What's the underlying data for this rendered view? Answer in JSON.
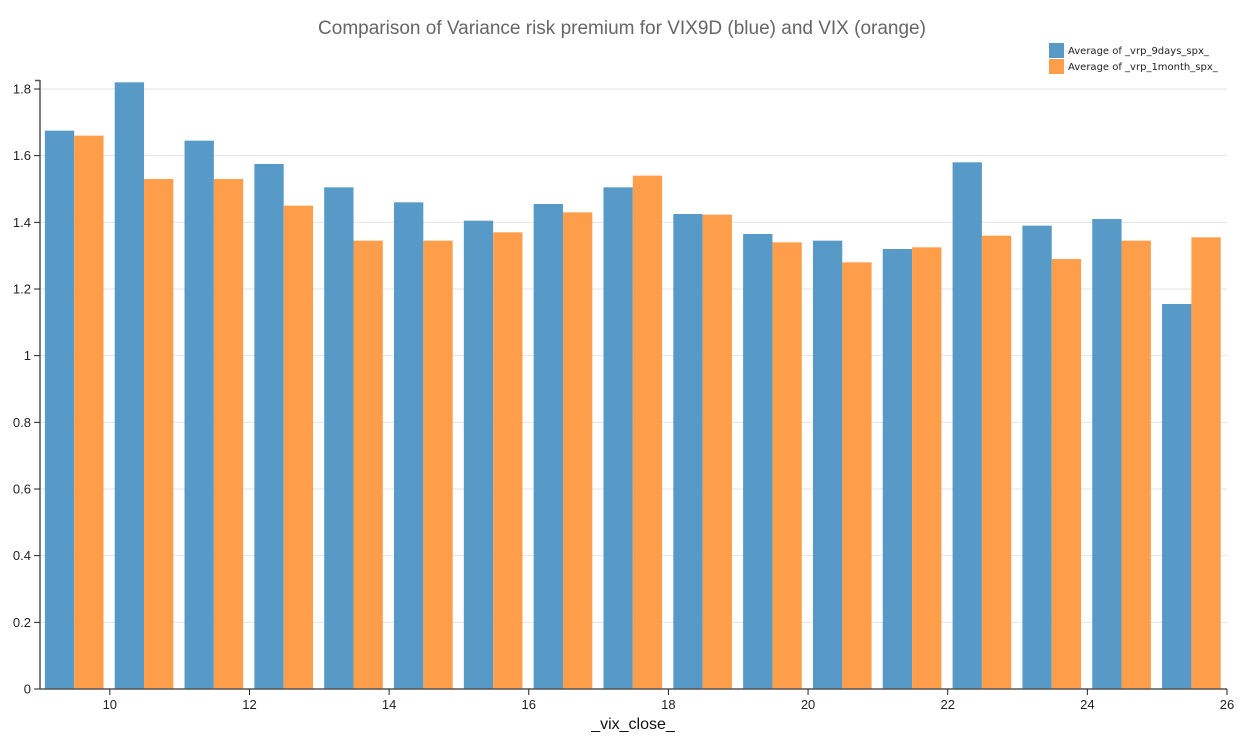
{
  "chart_data": {
    "type": "bar",
    "title": "Comparison of Variance risk premium for VIX9D (blue) and VIX (orange)",
    "xlabel": "_vix_close_",
    "ylabel": "",
    "xlim": [
      9,
      26
    ],
    "ylim": [
      0,
      1.8
    ],
    "x_ticks": [
      "10",
      "12",
      "14",
      "16",
      "18",
      "20",
      "22",
      "24",
      "26"
    ],
    "y_ticks": [
      "0",
      "0.2",
      "0.4",
      "0.6",
      "0.8",
      "1",
      "1.2",
      "1.4",
      "1.6",
      "1.8"
    ],
    "grid": true,
    "legend_position": "top-right",
    "categories": [
      9,
      10,
      11,
      12,
      13,
      14,
      15,
      16,
      17,
      18,
      19,
      20,
      21,
      22,
      23,
      24,
      25
    ],
    "series": [
      {
        "name": "Average of _vrp_9days_spx_",
        "color": "#5799c7",
        "values": [
          1.675,
          1.82,
          1.645,
          1.575,
          1.505,
          1.46,
          1.405,
          1.455,
          1.505,
          1.425,
          1.365,
          1.345,
          1.32,
          1.58,
          1.39,
          1.41,
          1.155
        ]
      },
      {
        "name": "Average of _vrp_1month_spx_",
        "color": "#fe9d4a",
        "values": [
          1.66,
          1.53,
          1.53,
          1.45,
          1.345,
          1.345,
          1.37,
          1.43,
          1.54,
          1.423,
          1.34,
          1.28,
          1.325,
          1.36,
          1.29,
          1.345,
          1.355
        ]
      }
    ]
  }
}
